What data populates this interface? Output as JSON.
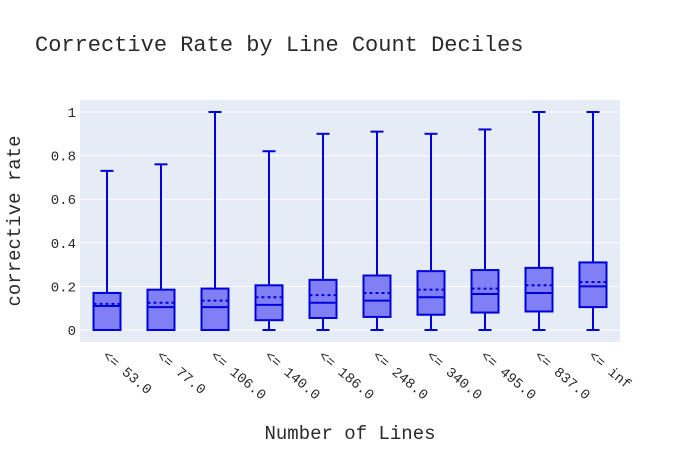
{
  "chart_data": {
    "type": "box",
    "title": "Corrective Rate by Line Count Deciles",
    "xlabel": "Number of Lines",
    "ylabel": "corrective rate",
    "ylim": [
      -0.05,
      1.04
    ],
    "yticks": [
      0,
      0.2,
      0.4,
      0.6,
      0.8,
      1
    ],
    "ytick_labels": [
      "0",
      "0.2",
      "0.4",
      "0.6",
      "0.8",
      "1"
    ],
    "grid": true,
    "legend": "none",
    "colors": {
      "plot_bg": "#e5ecf6",
      "grid": "#ffffff",
      "box_fill": "#8080f4",
      "box_line": "#0000dd",
      "text": "#2a2a2a"
    },
    "categories": [
      "<= 53.0",
      "<= 77.0",
      "<= 106.0",
      "<= 140.0",
      "<= 186.0",
      "<= 248.0",
      "<= 340.0",
      "<= 495.0",
      "<= 837.0",
      "<= inf"
    ],
    "boxes": [
      {
        "min": 0,
        "q1": 0,
        "median": 0.11,
        "mean": 0.12,
        "q3": 0.17,
        "max": 0.73
      },
      {
        "min": 0,
        "q1": 0,
        "median": 0.105,
        "mean": 0.125,
        "q3": 0.185,
        "max": 0.76
      },
      {
        "min": 0,
        "q1": 0,
        "median": 0.105,
        "mean": 0.135,
        "q3": 0.19,
        "max": 1.0
      },
      {
        "min": 0,
        "q1": 0.045,
        "median": 0.115,
        "mean": 0.15,
        "q3": 0.205,
        "max": 0.82
      },
      {
        "min": 0,
        "q1": 0.055,
        "median": 0.125,
        "mean": 0.16,
        "q3": 0.23,
        "max": 0.9
      },
      {
        "min": 0,
        "q1": 0.06,
        "median": 0.135,
        "mean": 0.17,
        "q3": 0.25,
        "max": 0.91
      },
      {
        "min": 0,
        "q1": 0.07,
        "median": 0.15,
        "mean": 0.185,
        "q3": 0.27,
        "max": 0.9
      },
      {
        "min": 0,
        "q1": 0.08,
        "median": 0.165,
        "mean": 0.19,
        "q3": 0.275,
        "max": 0.92
      },
      {
        "min": 0,
        "q1": 0.085,
        "median": 0.17,
        "mean": 0.205,
        "q3": 0.285,
        "max": 1.0
      },
      {
        "min": 0,
        "q1": 0.105,
        "median": 0.2,
        "mean": 0.22,
        "q3": 0.31,
        "max": 1.0
      }
    ]
  }
}
